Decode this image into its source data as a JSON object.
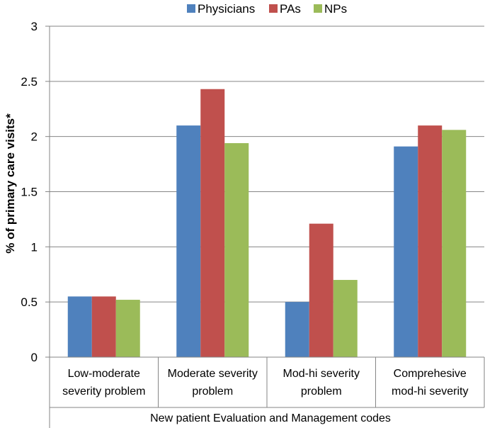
{
  "chart_data": {
    "type": "bar",
    "categories": [
      [
        "Low-moderate",
        "severity problem"
      ],
      [
        "Moderate severity",
        "problem"
      ],
      [
        "Mod-hi severity",
        "problem"
      ],
      [
        "Comprehesive",
        "mod-hi severity"
      ]
    ],
    "series": [
      {
        "name": "Physicians",
        "color": "#4F81BD",
        "values": [
          0.55,
          2.1,
          0.5,
          1.91
        ]
      },
      {
        "name": "PAs",
        "color": "#C0504D",
        "values": [
          0.55,
          2.43,
          1.21,
          2.1
        ]
      },
      {
        "name": "NPs",
        "color": "#9BBB59",
        "values": [
          0.52,
          1.94,
          0.7,
          2.06
        ]
      }
    ],
    "ylabel": "% of primary care visits*",
    "xlabel": "New patient Evaluation and Management codes",
    "ylim": [
      0,
      3
    ],
    "yticks": [
      "0",
      "0.5",
      "1",
      "1.5",
      "2",
      "2.5",
      "3"
    ],
    "grid": true,
    "legend_position": "top"
  }
}
